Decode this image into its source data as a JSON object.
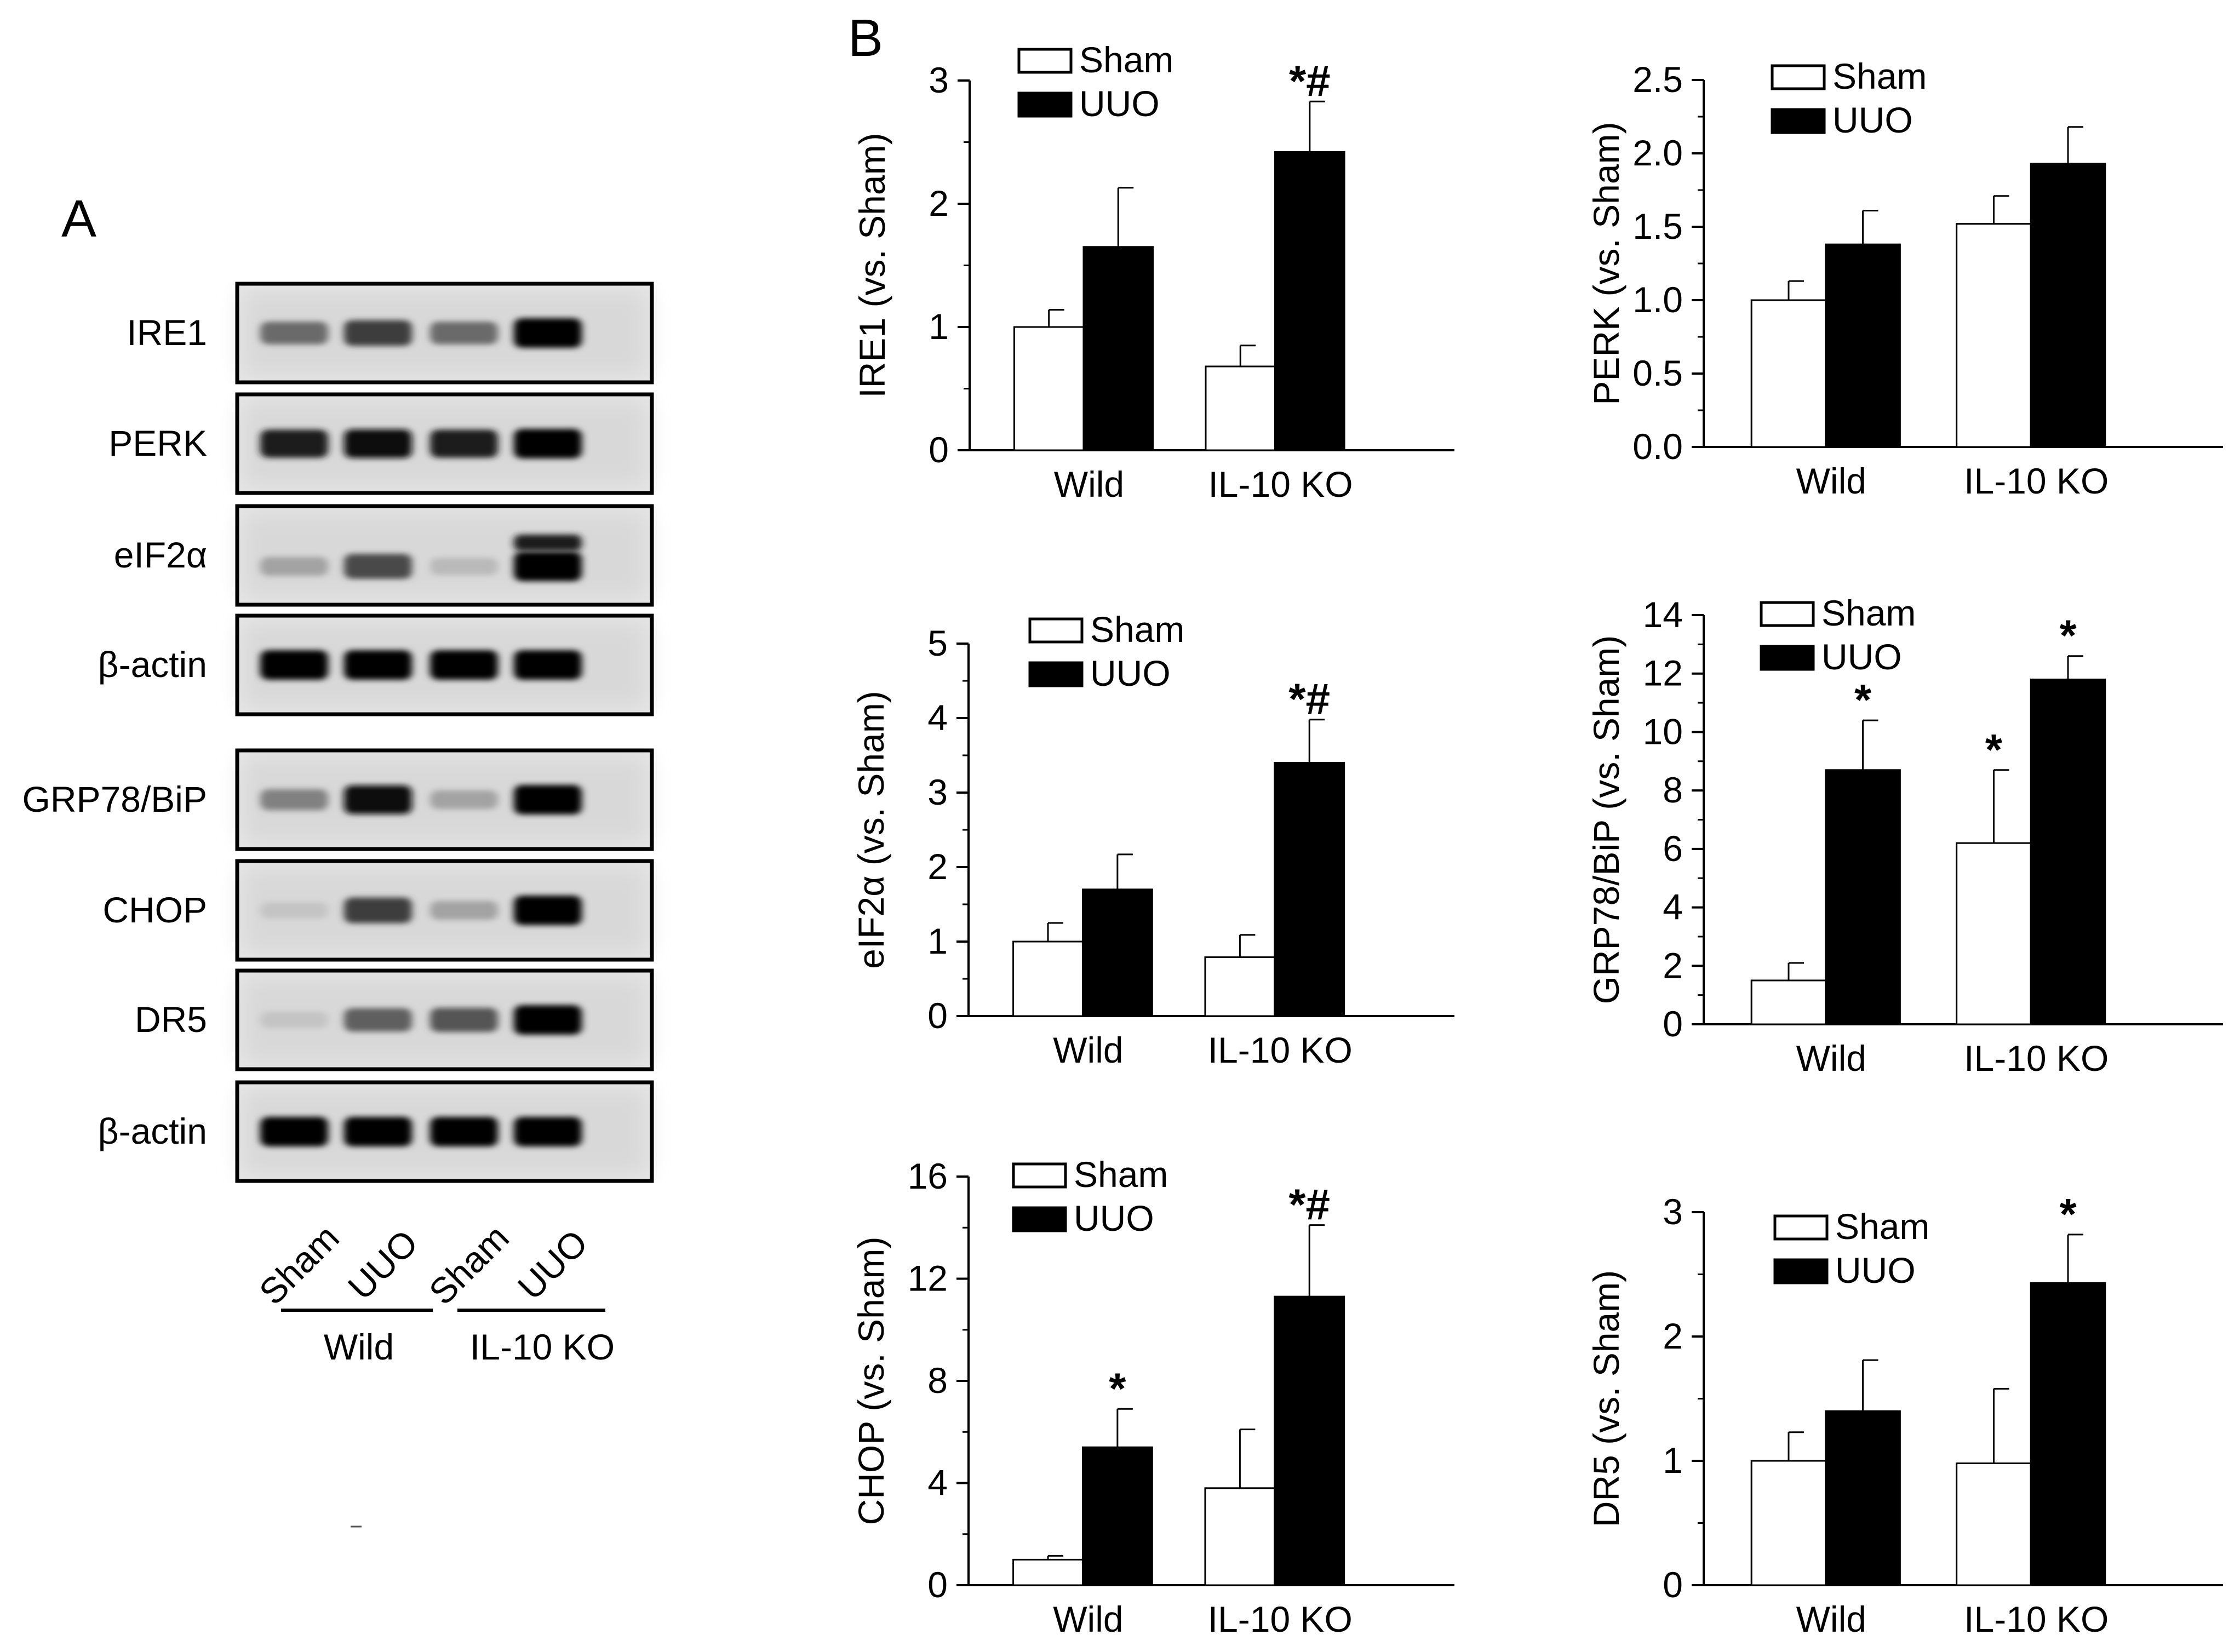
{
  "panel_a": {
    "letter": "A",
    "blots": [
      {
        "label": "IRE1",
        "bands": [
          0.55,
          0.75,
          0.55,
          1.0
        ],
        "extra": []
      },
      {
        "label": "PERK",
        "bands": [
          0.9,
          0.95,
          0.9,
          1.0
        ],
        "extra": []
      },
      {
        "label": "eIF2α",
        "bands": [
          0.3,
          0.7,
          0.2,
          1.0
        ],
        "extra": [
          0,
          0,
          0,
          0.9
        ]
      },
      {
        "label": "β-actin",
        "bands": [
          1.0,
          1.0,
          1.0,
          1.0
        ],
        "extra": []
      },
      {
        "label": "GRP78/BiP",
        "bands": [
          0.45,
          0.95,
          0.3,
          1.0
        ],
        "extra": []
      },
      {
        "label": "CHOP",
        "bands": [
          0.15,
          0.75,
          0.3,
          1.0
        ],
        "extra": []
      },
      {
        "label": "DR5",
        "bands": [
          0.15,
          0.6,
          0.65,
          1.0
        ],
        "extra": []
      },
      {
        "label": "β-actin",
        "bands": [
          1.0,
          1.0,
          1.0,
          1.0
        ],
        "extra": []
      }
    ],
    "lanes": [
      "Sham",
      "UUO",
      "Sham",
      "UUO"
    ],
    "groups": [
      "Wild",
      "IL-10 KO"
    ]
  },
  "panel_b": {
    "letter": "B"
  },
  "legend": [
    "Sham",
    "UUO"
  ],
  "colors": {
    "sham": "#ffffff",
    "uuo": "#000000"
  },
  "chart_data": [
    {
      "type": "bar",
      "ylabel": "IRE1  (vs. Sham)",
      "ylim": [
        0,
        3
      ],
      "yticks": [
        "0",
        "1",
        "2",
        "3"
      ],
      "categories": [
        "Wild",
        "IL-10 KO"
      ],
      "series": [
        {
          "name": "Sham",
          "values": [
            1.0,
            0.68
          ],
          "errors": [
            0.14,
            0.17
          ],
          "marks": [
            "",
            ""
          ]
        },
        {
          "name": "UUO",
          "values": [
            1.65,
            2.42
          ],
          "errors": [
            0.48,
            0.41
          ],
          "marks": [
            "",
            "*#"
          ]
        }
      ]
    },
    {
      "type": "bar",
      "ylabel": "PERK (vs. Sham)",
      "ylim": [
        0,
        2.5
      ],
      "yticks": [
        "0.0",
        "0.5",
        "1.0",
        "1.5",
        "2.0",
        "2.5"
      ],
      "categories": [
        "Wild",
        "IL-10 KO"
      ],
      "series": [
        {
          "name": "Sham",
          "values": [
            1.0,
            1.52
          ],
          "errors": [
            0.13,
            0.19
          ],
          "marks": [
            "",
            ""
          ]
        },
        {
          "name": "UUO",
          "values": [
            1.38,
            1.93
          ],
          "errors": [
            0.23,
            0.25
          ],
          "marks": [
            "",
            ""
          ]
        }
      ]
    },
    {
      "type": "bar",
      "ylabel": "eIF2α (vs. Sham)",
      "ylim": [
        0,
        5
      ],
      "yticks": [
        "0",
        "1",
        "2",
        "3",
        "4",
        "5"
      ],
      "categories": [
        "Wild",
        "IL-10 KO"
      ],
      "series": [
        {
          "name": "Sham",
          "values": [
            1.0,
            0.79
          ],
          "errors": [
            0.25,
            0.3
          ],
          "marks": [
            "",
            ""
          ]
        },
        {
          "name": "UUO",
          "values": [
            1.7,
            3.4
          ],
          "errors": [
            0.47,
            0.58
          ],
          "marks": [
            "",
            "*#"
          ]
        }
      ]
    },
    {
      "type": "bar",
      "ylabel": "GRP78/BiP (vs. Sham)",
      "ylim": [
        0,
        14
      ],
      "yticks": [
        "0",
        "2",
        "4",
        "6",
        "8",
        "10",
        "12",
        "14"
      ],
      "categories": [
        "Wild",
        "IL-10 KO"
      ],
      "series": [
        {
          "name": "Sham",
          "values": [
            1.5,
            6.2
          ],
          "errors": [
            0.6,
            2.5
          ],
          "marks": [
            "",
            "*"
          ]
        },
        {
          "name": "UUO",
          "values": [
            8.7,
            11.8
          ],
          "errors": [
            1.7,
            0.8
          ],
          "marks": [
            "*",
            "*"
          ]
        }
      ]
    },
    {
      "type": "bar",
      "ylabel": "CHOP (vs. Sham)",
      "ylim": [
        0,
        16
      ],
      "yticks": [
        "0",
        "4",
        "8",
        "12",
        "16"
      ],
      "categories": [
        "Wild",
        "IL-10 KO"
      ],
      "series": [
        {
          "name": "Sham",
          "values": [
            1.0,
            3.8
          ],
          "errors": [
            0.15,
            2.3
          ],
          "marks": [
            "",
            ""
          ]
        },
        {
          "name": "UUO",
          "values": [
            5.4,
            11.3
          ],
          "errors": [
            1.5,
            2.8
          ],
          "marks": [
            "*",
            "*#"
          ]
        }
      ]
    },
    {
      "type": "bar",
      "ylabel": "DR5 (vs. Sham)",
      "ylim": [
        0,
        3
      ],
      "yticks": [
        "0",
        "1",
        "2",
        "3"
      ],
      "categories": [
        "Wild",
        "IL-10 KO"
      ],
      "series": [
        {
          "name": "Sham",
          "values": [
            1.0,
            0.98
          ],
          "errors": [
            0.23,
            0.6
          ],
          "marks": [
            "",
            ""
          ]
        },
        {
          "name": "UUO",
          "values": [
            1.4,
            2.43
          ],
          "errors": [
            0.41,
            0.39
          ],
          "marks": [
            "",
            "*"
          ]
        }
      ]
    }
  ]
}
